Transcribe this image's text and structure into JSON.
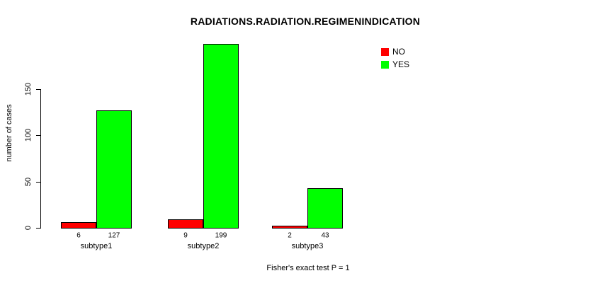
{
  "chart_data": {
    "type": "bar",
    "title": "RADIATIONS.RADIATION.REGIMENINDICATION",
    "ylabel": "number of cases",
    "xlabel": "",
    "categories": [
      "subtype1",
      "subtype2",
      "subtype3"
    ],
    "series": [
      {
        "name": "NO",
        "color": "#ff0000",
        "values": [
          6,
          9,
          2
        ]
      },
      {
        "name": "YES",
        "color": "#00ff00",
        "values": [
          127,
          199,
          43
        ]
      }
    ],
    "yticks": [
      0,
      50,
      100,
      150
    ],
    "ylim": [
      0,
      200
    ],
    "axis_tick_max": 150,
    "grid": false,
    "bar_borders_color": "#000000",
    "values_printed_below_bars": true,
    "legend": {
      "position": "top-right",
      "entries": [
        {
          "label": "NO",
          "color": "#ff0000"
        },
        {
          "label": "YES",
          "color": "#00ff00"
        }
      ]
    },
    "footnote": "Fisher's exact test P = 1"
  }
}
